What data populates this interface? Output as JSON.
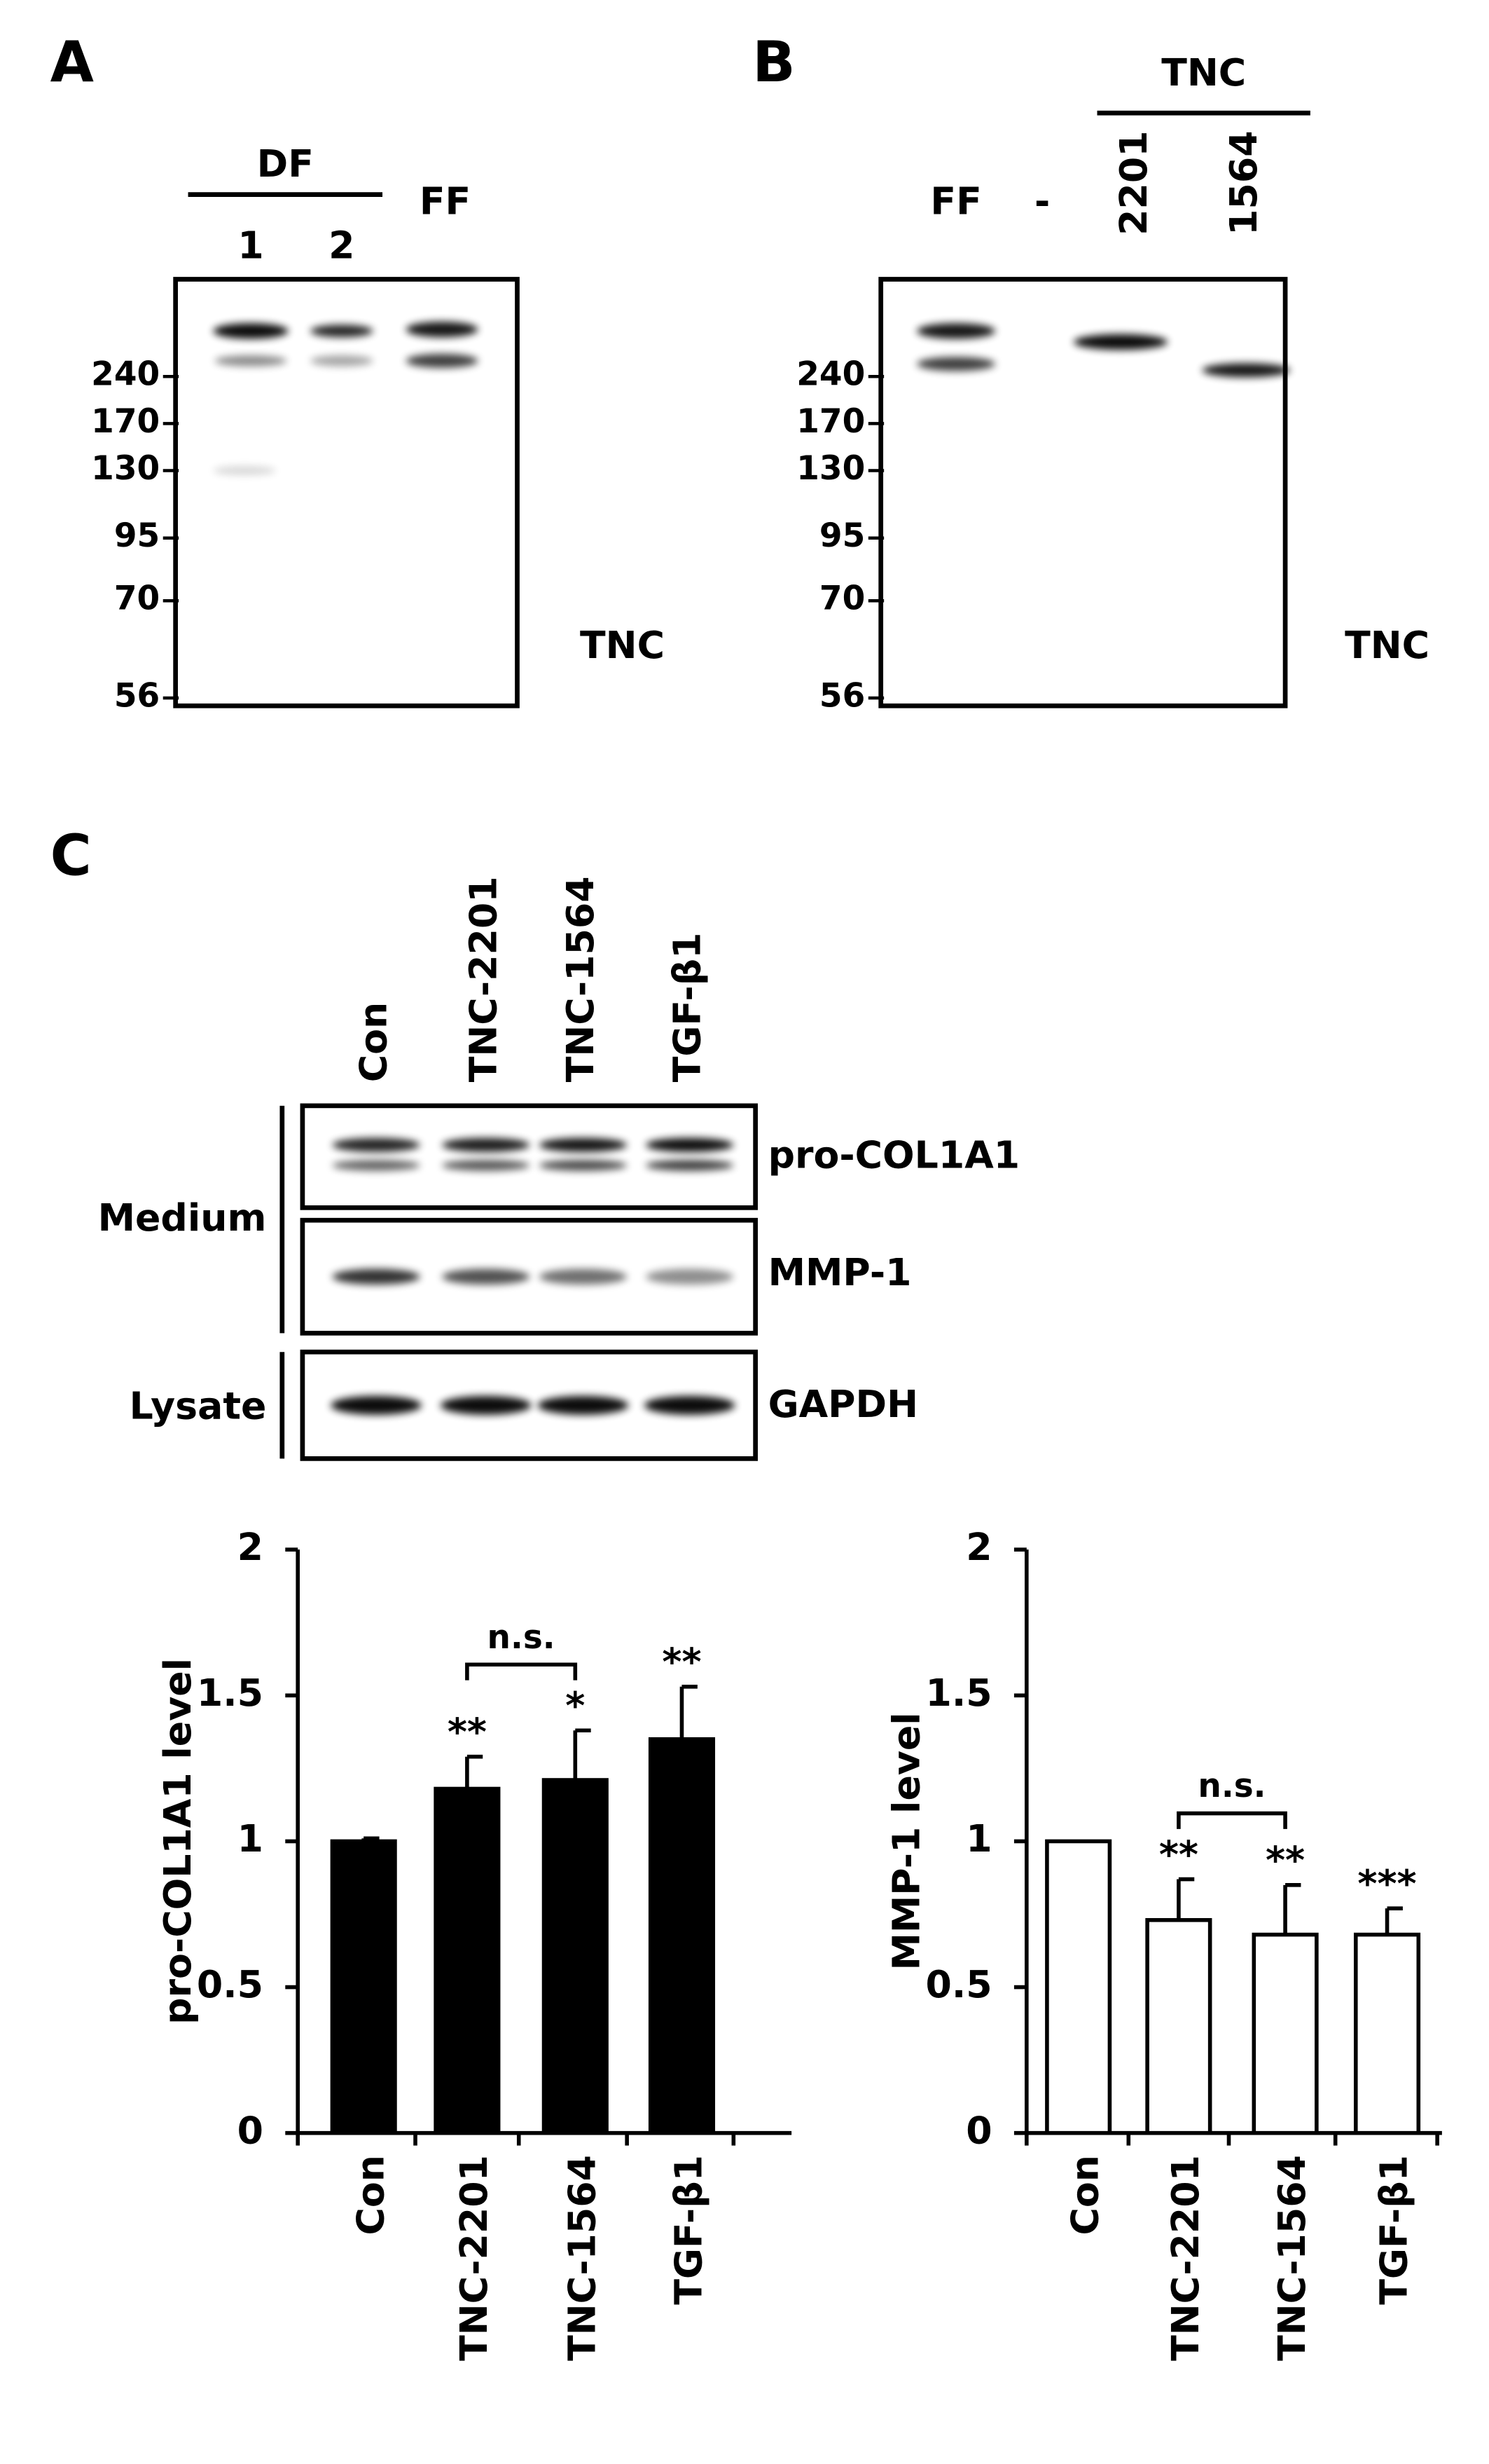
{
  "panels": {
    "a": {
      "label": "A",
      "group_label": "DF",
      "lanes": [
        "1",
        "2",
        "FF"
      ],
      "markers": [
        "240",
        "170",
        "130",
        "95",
        "70",
        "56"
      ],
      "protein": "TNC"
    },
    "b": {
      "label": "B",
      "group_label": "TNC",
      "lanes": [
        "FF",
        "-",
        "2201",
        "1564"
      ],
      "markers": [
        "240",
        "170",
        "130",
        "95",
        "70",
        "56"
      ],
      "protein": "TNC"
    },
    "c": {
      "label": "C",
      "lanes": [
        "Con",
        "TNC-2201",
        "TNC-1564",
        "TGF-β1"
      ],
      "blots": [
        "pro-COL1A1",
        "MMP-1",
        "GAPDH"
      ],
      "groups": [
        "Medium",
        "Lysate"
      ]
    }
  },
  "chart_data": [
    {
      "type": "bar",
      "ylabel": "pro-COL1A1 level",
      "categories": [
        "Con",
        "TNC-2201",
        "TNC-1564",
        "TGF-β1"
      ],
      "values": [
        1.0,
        1.18,
        1.21,
        1.35
      ],
      "errors": [
        0.01,
        0.11,
        0.17,
        0.18
      ],
      "significance": [
        null,
        "**",
        "*",
        "**"
      ],
      "annotation": {
        "text": "n.s.",
        "categories": [
          "TNC-2201",
          "TNC-1564"
        ]
      },
      "color": "#000000",
      "ylim": [
        0,
        2
      ],
      "yticks": [
        0,
        0.5,
        1,
        1.5,
        2
      ]
    },
    {
      "type": "bar",
      "ylabel": "MMP-1 level",
      "categories": [
        "Con",
        "TNC-2201",
        "TNC-1564",
        "TGF-β1"
      ],
      "values": [
        1.0,
        0.73,
        0.68,
        0.68
      ],
      "errors": [
        null,
        0.14,
        0.17,
        0.09
      ],
      "significance": [
        null,
        "**",
        "**",
        "***"
      ],
      "annotation": {
        "text": "n.s.",
        "categories": [
          "TNC-2201",
          "TNC-1564"
        ]
      },
      "color": "#ffffff",
      "ylim": [
        0,
        2
      ],
      "yticks": [
        0,
        0.5,
        1,
        1.5,
        2
      ]
    }
  ]
}
